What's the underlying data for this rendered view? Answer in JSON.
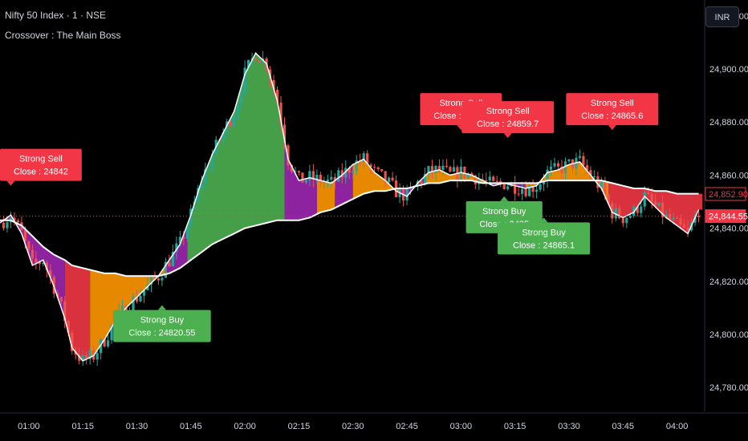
{
  "header": {
    "symbol": "Nifty 50 Index · 1 · NSE",
    "indicator": "Crossover : The Main Boss"
  },
  "currency_button": "INR",
  "colors": {
    "background": "#000000",
    "candle_up": "#26a69a",
    "candle_down": "#ef5350",
    "bull_fill": "#4caf50",
    "bear_fill": "#f23645",
    "purple_fill": "#9c27b0",
    "orange_fill": "#ff9800",
    "sell_label": "#f23645",
    "buy_label": "#4caf50",
    "price_line": "#f23645"
  },
  "chart_data": {
    "type": "line",
    "title": "Nifty 50 Index · 1 · NSE",
    "y_range": [
      24771,
      24926
    ],
    "x_range": [
      "00:52",
      "04:07"
    ],
    "y_tick_labels": [
      "24,920.00",
      "24,900.00",
      "24,880.00",
      "24,860.00",
      "24,840.00",
      "24,820.00",
      "24,800.00",
      "24,780.00"
    ],
    "y_ticks": [
      24920,
      24900,
      24880,
      24860,
      24840,
      24820,
      24800,
      24780
    ],
    "x_tick_labels": [
      "01:00",
      "01:15",
      "01:30",
      "01:45",
      "02:00",
      "02:15",
      "02:30",
      "02:45",
      "03:00",
      "03:15",
      "03:30",
      "03:45",
      "04:00"
    ],
    "x_ticks": [
      "01:00",
      "01:15",
      "01:30",
      "01:45",
      "02:00",
      "02:15",
      "02:30",
      "02:45",
      "03:00",
      "03:15",
      "03:30",
      "03:45",
      "04:00"
    ],
    "price_labels": [
      {
        "text": "24,852.90",
        "value": 24852.9,
        "style": "outline"
      },
      {
        "text": "24,844.55",
        "value": 24844.55,
        "style": "filled"
      }
    ],
    "fast_line": {
      "x": [
        "00:52",
        "00:55",
        "00:58",
        "01:01",
        "01:04",
        "01:07",
        "01:10",
        "01:12",
        "01:15",
        "01:18",
        "01:21",
        "01:24",
        "01:27",
        "01:30",
        "01:33",
        "01:36",
        "01:39",
        "01:42",
        "01:45",
        "01:48",
        "01:51",
        "01:54",
        "01:57",
        "02:00",
        "02:03",
        "02:06",
        "02:09",
        "02:12",
        "02:15",
        "02:18",
        "02:21",
        "02:24",
        "02:27",
        "02:30",
        "02:33",
        "02:36",
        "02:39",
        "02:42",
        "02:45",
        "02:48",
        "02:51",
        "02:54",
        "02:57",
        "03:00",
        "03:03",
        "03:06",
        "03:09",
        "03:12",
        "03:15",
        "03:18",
        "03:21",
        "03:24",
        "03:27",
        "03:30",
        "03:33",
        "03:36",
        "03:39",
        "03:42",
        "03:45",
        "03:48",
        "03:51",
        "03:54",
        "03:57",
        "04:00",
        "04:03",
        "04:06"
      ],
      "y": [
        24842,
        24845,
        24838,
        24826,
        24828,
        24818,
        24806,
        24795,
        24790,
        24792,
        24798,
        24805,
        24810,
        24814,
        24818,
        24822,
        24828,
        24834,
        24845,
        24858,
        24868,
        24876,
        24884,
        24898,
        24906,
        24902,
        24888,
        24866,
        24858,
        24859,
        24858,
        24857,
        24860,
        24864,
        24866,
        24861,
        24858,
        24854,
        24852,
        24857,
        24861,
        24862,
        24860,
        24861,
        24860,
        24858,
        24856,
        24857,
        24856,
        24855,
        24856,
        24861,
        24862,
        24864,
        24865,
        24860,
        24855,
        24846,
        24844,
        24846,
        24852,
        24848,
        24844,
        24841,
        24838,
        24847
      ]
    },
    "slow_line": {
      "x": [
        "00:52",
        "00:55",
        "00:58",
        "01:01",
        "01:04",
        "01:07",
        "01:10",
        "01:12",
        "01:15",
        "01:18",
        "01:21",
        "01:24",
        "01:27",
        "01:30",
        "01:33",
        "01:36",
        "01:39",
        "01:42",
        "01:45",
        "01:48",
        "01:51",
        "01:54",
        "01:57",
        "02:00",
        "02:03",
        "02:06",
        "02:09",
        "02:12",
        "02:15",
        "02:18",
        "02:21",
        "02:24",
        "02:27",
        "02:30",
        "02:33",
        "02:36",
        "02:39",
        "02:42",
        "02:45",
        "02:48",
        "02:51",
        "02:54",
        "02:57",
        "03:00",
        "03:03",
        "03:06",
        "03:09",
        "03:12",
        "03:15",
        "03:18",
        "03:21",
        "03:24",
        "03:27",
        "03:30",
        "03:33",
        "03:36",
        "03:39",
        "03:42",
        "03:45",
        "03:48",
        "03:51",
        "03:54",
        "03:57",
        "04:00",
        "04:03",
        "04:06"
      ],
      "y": [
        24843,
        24843,
        24841,
        24837,
        24833,
        24830,
        24828,
        24826,
        24825,
        24824,
        24823,
        24823,
        24822,
        24822,
        24822,
        24822,
        24823,
        24825,
        24828,
        24831,
        24834,
        24836,
        24838,
        24840,
        24841,
        24842,
        24843,
        24843,
        24843,
        24844,
        24846,
        24847,
        24849,
        24851,
        24853,
        24854,
        24854,
        24855,
        24855,
        24856,
        24857,
        24857,
        24858,
        24858,
        24858,
        24857,
        24857,
        24857,
        24857,
        24857,
        24857,
        24858,
        24858,
        24858,
        24858,
        24858,
        24858,
        24857,
        24856,
        24855,
        24855,
        24854,
        24854,
        24853,
        24853,
        24853
      ]
    },
    "fills": [
      {
        "from": "00:52",
        "to": "01:10",
        "color": "purple"
      },
      {
        "from": "01:10",
        "to": "01:17",
        "color": "bear"
      },
      {
        "from": "01:17",
        "to": "01:38",
        "color": "orange"
      },
      {
        "from": "01:38",
        "to": "01:44",
        "color": "purple"
      },
      {
        "from": "01:44",
        "to": "02:11",
        "color": "bull"
      },
      {
        "from": "02:11",
        "to": "02:20",
        "color": "purple"
      },
      {
        "from": "02:20",
        "to": "02:25",
        "color": "orange"
      },
      {
        "from": "02:25",
        "to": "02:30",
        "color": "purple"
      },
      {
        "from": "02:30",
        "to": "02:43",
        "color": "orange"
      },
      {
        "from": "02:43",
        "to": "02:50",
        "color": "purple"
      },
      {
        "from": "02:50",
        "to": "03:08",
        "color": "orange"
      },
      {
        "from": "03:08",
        "to": "03:18",
        "color": "purple"
      },
      {
        "from": "03:18",
        "to": "03:41",
        "color": "orange"
      },
      {
        "from": "03:41",
        "to": "04:07",
        "color": "bear"
      }
    ],
    "signals": [
      {
        "type": "sell",
        "title": "Strong Sell",
        "close": "Close : 24842",
        "time": "00:55",
        "price": 24856
      },
      {
        "type": "buy",
        "title": "Strong Buy",
        "close": "Close : 24820.55",
        "time": "01:37",
        "price": 24811
      },
      {
        "type": "sell",
        "title": "Strong Sell",
        "close": "Close : 24864",
        "time": "03:00",
        "price": 24877
      },
      {
        "type": "sell",
        "title": "Strong Sell",
        "close": "Close : 24859.7",
        "time": "03:13",
        "price": 24874
      },
      {
        "type": "buy",
        "title": "Strong Buy",
        "close": "Close : 2485",
        "time": "03:12",
        "price": 24852
      },
      {
        "type": "buy",
        "title": "Strong Buy",
        "close": "Close : 24865.1",
        "time": "03:23",
        "price": 24844
      },
      {
        "type": "sell",
        "title": "Strong Sell",
        "close": "Close : 24865.6",
        "time": "03:42",
        "price": 24877
      }
    ]
  }
}
